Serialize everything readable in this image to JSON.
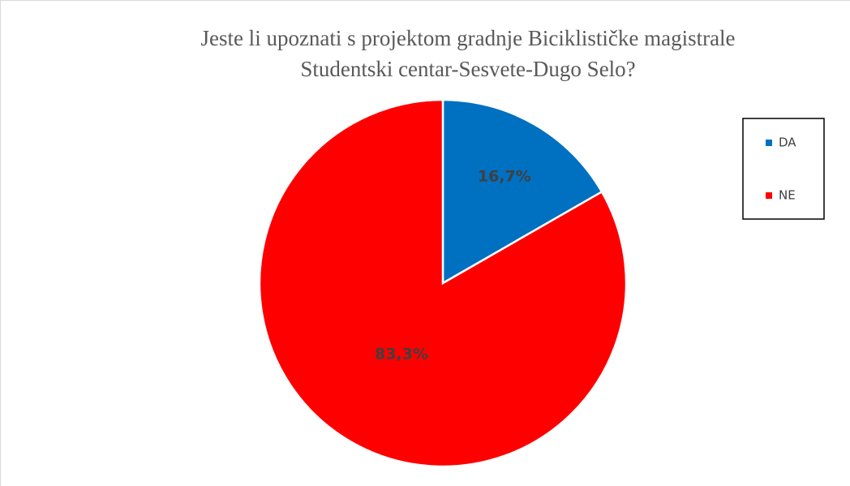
{
  "chart_data": {
    "type": "pie",
    "title": [
      "Jeste li upoznati s projektom gradnje Biciklističke magistrale",
      "Studentski centar-Sesvete-Dugo Selo?"
    ],
    "categories": [
      "DA",
      "NE"
    ],
    "values": [
      16.7,
      83.3
    ],
    "value_labels": [
      "16,7%",
      "83,3%"
    ],
    "colors": [
      "#0070c0",
      "#ff0000"
    ],
    "legend": "right"
  }
}
